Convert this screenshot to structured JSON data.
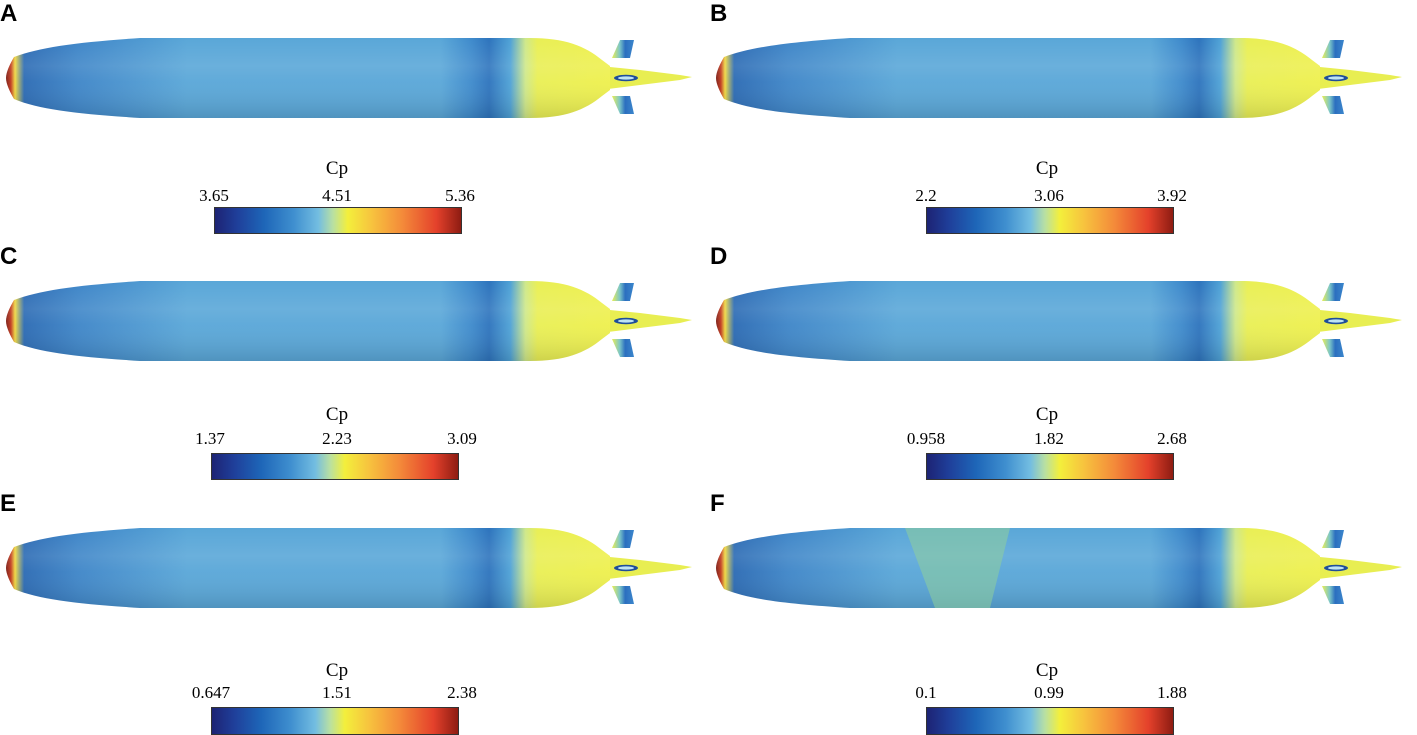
{
  "panels": [
    {
      "letter": "A",
      "title": "Cp",
      "min": "3.65",
      "mid": "4.51",
      "max": "5.36"
    },
    {
      "letter": "B",
      "title": "Cp",
      "min": "2.2",
      "mid": "3.06",
      "max": "3.92"
    },
    {
      "letter": "C",
      "title": "Cp",
      "min": "1.37",
      "mid": "2.23",
      "max": "3.09"
    },
    {
      "letter": "D",
      "title": "Cp",
      "min": "0.958",
      "mid": "1.82",
      "max": "2.68"
    },
    {
      "letter": "E",
      "title": "Cp",
      "min": "0.647",
      "mid": "1.51",
      "max": "2.38"
    },
    {
      "letter": "F",
      "title": "Cp",
      "min": "0.1",
      "mid": "0.99",
      "max": "1.88"
    }
  ],
  "colors": {
    "hull_main": "#5aa7d8",
    "hull_dark": "#2f77bf",
    "nose": "#b4211b",
    "tail_yellow": "#e7ee53",
    "fin_blue": "#2c6fbf",
    "patch_green": "#8fcf9a"
  },
  "icons": {
    "hull": "submarine-hull-icon"
  }
}
